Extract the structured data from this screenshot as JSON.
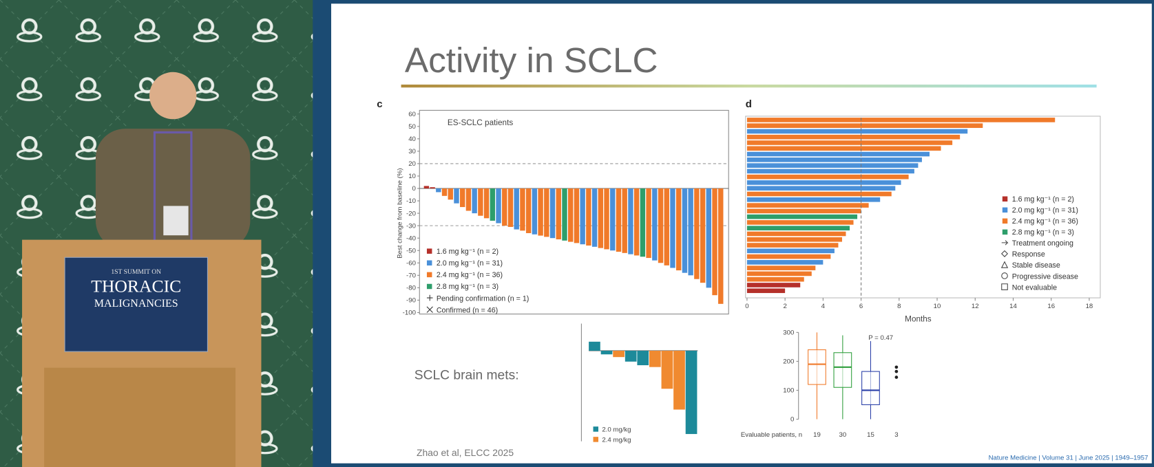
{
  "podium_sign": {
    "line1": "1ST SUMMIT ON",
    "line2": "THORACIC",
    "line3": "MALIGNANCIES"
  },
  "slide": {
    "title": "Activity in SCLC",
    "brain_mets_label": "SCLC brain mets:",
    "citation": "Zhao et al, ELCC 2025",
    "source": "Nature Medicine | Volume 31 | June 2025 | 1949–1957"
  },
  "panel_c": {
    "type": "bar",
    "label": "c",
    "annotation": "ES-SCLC patients",
    "y_label": "Best change from baseline (%)",
    "ylim": [
      -100,
      60
    ],
    "yticks": [
      60,
      50,
      40,
      30,
      20,
      10,
      0,
      -10,
      -20,
      -30,
      -40,
      -50,
      -60,
      -70,
      -80,
      -90,
      -100
    ],
    "reference_lines": [
      20,
      -30
    ],
    "legend": [
      {
        "name": "1.6 mg kg⁻¹ (n = 2)",
        "color": "#b5302a"
      },
      {
        "name": "2.0 mg kg⁻¹ (n = 31)",
        "color": "#4a90d9"
      },
      {
        "name": "2.4 mg kg⁻¹ (n = 36)",
        "color": "#f07a2a"
      },
      {
        "name": "2.8 mg kg⁻¹ (n = 3)",
        "color": "#2e9e6b"
      }
    ],
    "marker_legend": [
      "Pending confirmation (n = 1)",
      "Confirmed (n = 46)"
    ],
    "values": [
      2,
      1,
      -3,
      -6,
      -9,
      -12,
      -15,
      -18,
      -20,
      -22,
      -24,
      -26,
      -28,
      -30,
      -31,
      -33,
      -34,
      -36,
      -37,
      -38,
      -39,
      -40,
      -41,
      -42,
      -43,
      -44,
      -45,
      -46,
      -47,
      -48,
      -49,
      -50,
      -51,
      -52,
      -53,
      -54,
      -55,
      -56,
      -58,
      -60,
      -62,
      -64,
      -66,
      -68,
      -70,
      -73,
      -76,
      -80,
      -86,
      -93
    ],
    "groups": [
      0,
      0,
      1,
      2,
      2,
      1,
      2,
      2,
      1,
      2,
      2,
      3,
      1,
      2,
      2,
      1,
      2,
      2,
      1,
      2,
      2,
      1,
      2,
      3,
      2,
      2,
      1,
      2,
      1,
      2,
      2,
      1,
      2,
      2,
      1,
      2,
      3,
      2,
      1,
      2,
      2,
      1,
      2,
      1,
      1,
      2,
      2,
      1,
      2,
      2
    ]
  },
  "panel_d": {
    "type": "swimmer",
    "label": "d",
    "x_label": "Months",
    "xlim": [
      0,
      18
    ],
    "xticks": [
      0,
      2,
      4,
      6,
      8,
      10,
      12,
      14,
      16,
      18
    ],
    "reference_line": 6,
    "legend": [
      {
        "name": "1.6 mg kg⁻¹ (n = 2)",
        "color": "#b5302a"
      },
      {
        "name": "2.0 mg kg⁻¹ (n = 31)",
        "color": "#4a90d9"
      },
      {
        "name": "2.4 mg kg⁻¹ (n = 36)",
        "color": "#f07a2a"
      },
      {
        "name": "2.8 mg kg⁻¹ (n = 3)",
        "color": "#2e9e6b"
      }
    ],
    "symbol_legend": [
      "Treatment ongoing",
      "Response",
      "Stable disease",
      "Progressive disease",
      "Not evaluable"
    ],
    "values": [
      16.2,
      12.4,
      11.6,
      11.2,
      10.8,
      10.2,
      9.6,
      9.2,
      9.0,
      8.8,
      8.5,
      8.1,
      7.8,
      7.6,
      7.0,
      6.4,
      6.0,
      5.8,
      5.6,
      5.4,
      5.2,
      5.0,
      4.8,
      4.6,
      4.4,
      4.0,
      3.6,
      3.4,
      3.0,
      2.8,
      2.0
    ],
    "groups": [
      2,
      2,
      1,
      2,
      2,
      2,
      1,
      1,
      1,
      1,
      2,
      1,
      1,
      2,
      1,
      2,
      2,
      3,
      2,
      3,
      2,
      2,
      2,
      1,
      2,
      1,
      2,
      2,
      2,
      0,
      0
    ]
  },
  "brain_mets": {
    "type": "bar",
    "ylim": [
      -100,
      30
    ],
    "values": [
      10,
      -4,
      -7,
      -12,
      -16,
      -18,
      -42,
      -65,
      -92
    ],
    "groups": [
      0,
      0,
      1,
      0,
      0,
      1,
      1,
      1,
      0
    ],
    "legend": [
      {
        "name": "2.0 mg/kg",
        "color": "#1d8a9a"
      },
      {
        "name": "2.4 mg/kg",
        "color": "#f08a30"
      }
    ]
  },
  "h_score": {
    "type": "box",
    "annotation": "P = 0.47",
    "ylim": [
      0,
      300
    ],
    "yticks": [
      0,
      100,
      200,
      300
    ],
    "boxes": [
      {
        "min": 0,
        "q1": 120,
        "median": 190,
        "q3": 240,
        "max": 300,
        "color": "#f07a2a"
      },
      {
        "min": 0,
        "q1": 110,
        "median": 180,
        "q3": 230,
        "max": 290,
        "color": "#2e9e3b"
      },
      {
        "min": 0,
        "q1": 50,
        "median": 100,
        "q3": 165,
        "max": 270,
        "color": "#2a3fa8"
      }
    ],
    "points": [
      145,
      165,
      180
    ],
    "rows": [
      {
        "label": "Evaluable patients, n",
        "values": [
          "19",
          "30",
          "15",
          "3"
        ]
      }
    ]
  }
}
